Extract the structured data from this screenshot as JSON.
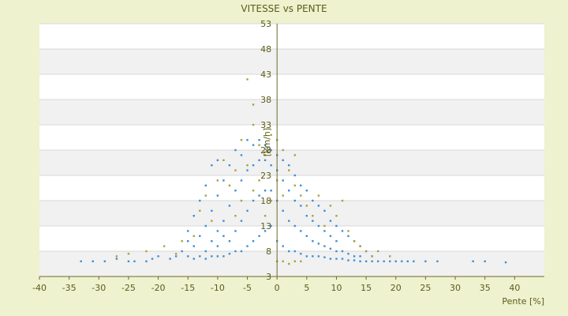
{
  "chart_data": {
    "type": "scatter",
    "title": "VITESSE vs PENTE",
    "xlabel": "Pente [%]",
    "ylabel": "[km/h]",
    "xlim": [
      -40,
      45
    ],
    "ylim": [
      3,
      53
    ],
    "x_ticks": [
      "-40",
      "-35",
      "-30",
      "-25",
      "-20",
      "-15",
      "-10",
      "-5",
      "0",
      "5",
      "10",
      "15",
      "20",
      "25",
      "30",
      "35",
      "40"
    ],
    "y_ticks": [
      "3",
      "8",
      "13",
      "18",
      "23",
      "28",
      "33",
      "38",
      "43",
      "48",
      "53"
    ],
    "grid": "horizontal alternating bands",
    "series": [
      {
        "color": "#3d8fd6",
        "points": [
          [
            -33,
            6
          ],
          [
            -31,
            6
          ],
          [
            -29,
            6
          ],
          [
            -27,
            6.5
          ],
          [
            -25,
            6
          ],
          [
            -24,
            6
          ],
          [
            -22,
            6
          ],
          [
            -21,
            6.5
          ],
          [
            -20,
            7
          ],
          [
            -18,
            6.5
          ],
          [
            -17,
            7
          ],
          [
            -16,
            8
          ],
          [
            -15,
            7
          ],
          [
            -15,
            10
          ],
          [
            -15,
            12
          ],
          [
            -14,
            6.5
          ],
          [
            -14,
            9
          ],
          [
            -14,
            15
          ],
          [
            -13,
            7
          ],
          [
            -13,
            11
          ],
          [
            -13,
            18
          ],
          [
            -12,
            6.5
          ],
          [
            -12,
            8
          ],
          [
            -12,
            13
          ],
          [
            -12,
            21
          ],
          [
            -11,
            7
          ],
          [
            -11,
            10
          ],
          [
            -11,
            16
          ],
          [
            -11,
            25
          ],
          [
            -10,
            7
          ],
          [
            -10,
            9
          ],
          [
            -10,
            12
          ],
          [
            -10,
            19
          ],
          [
            -10,
            26
          ],
          [
            -9,
            7
          ],
          [
            -9,
            11
          ],
          [
            -9,
            14
          ],
          [
            -9,
            22
          ],
          [
            -8,
            7.5
          ],
          [
            -8,
            10
          ],
          [
            -8,
            17
          ],
          [
            -8,
            25
          ],
          [
            -7,
            8
          ],
          [
            -7,
            12
          ],
          [
            -7,
            20
          ],
          [
            -7,
            28
          ],
          [
            -6,
            8
          ],
          [
            -6,
            14
          ],
          [
            -6,
            22
          ],
          [
            -6,
            27
          ],
          [
            -5,
            9
          ],
          [
            -5,
            16
          ],
          [
            -5,
            24
          ],
          [
            -5,
            30
          ],
          [
            -4,
            10
          ],
          [
            -4,
            18
          ],
          [
            -4,
            25
          ],
          [
            -4,
            29
          ],
          [
            -3,
            11
          ],
          [
            -3,
            19
          ],
          [
            -3,
            26
          ],
          [
            -3,
            30
          ],
          [
            -2,
            12
          ],
          [
            -2,
            20
          ],
          [
            -2,
            26
          ],
          [
            -2,
            29
          ],
          [
            -1,
            13
          ],
          [
            -1,
            20
          ],
          [
            -1,
            25
          ],
          [
            -1,
            28
          ],
          [
            0,
            10
          ],
          [
            0,
            18
          ],
          [
            0,
            24
          ],
          [
            0,
            27
          ],
          [
            1,
            9
          ],
          [
            1,
            16
          ],
          [
            1,
            22
          ],
          [
            1,
            26
          ],
          [
            2,
            8
          ],
          [
            2,
            14
          ],
          [
            2,
            20
          ],
          [
            2,
            25
          ],
          [
            3,
            8
          ],
          [
            3,
            13
          ],
          [
            3,
            18
          ],
          [
            3,
            23
          ],
          [
            4,
            7.5
          ],
          [
            4,
            12
          ],
          [
            4,
            17
          ],
          [
            4,
            21
          ],
          [
            5,
            7
          ],
          [
            5,
            11
          ],
          [
            5,
            15
          ],
          [
            5,
            20
          ],
          [
            6,
            7
          ],
          [
            6,
            10
          ],
          [
            6,
            14
          ],
          [
            6,
            18
          ],
          [
            7,
            7
          ],
          [
            7,
            9.5
          ],
          [
            7,
            13
          ],
          [
            7,
            17
          ],
          [
            8,
            6.8
          ],
          [
            8,
            9
          ],
          [
            8,
            12
          ],
          [
            8,
            16
          ],
          [
            9,
            6.5
          ],
          [
            9,
            8.5
          ],
          [
            9,
            11
          ],
          [
            9,
            14
          ],
          [
            10,
            6.5
          ],
          [
            10,
            8
          ],
          [
            10,
            10
          ],
          [
            10,
            13
          ],
          [
            11,
            6.5
          ],
          [
            11,
            8
          ],
          [
            11,
            12
          ],
          [
            12,
            6.2
          ],
          [
            12,
            7.5
          ],
          [
            12,
            11
          ],
          [
            13,
            6.2
          ],
          [
            13,
            7
          ],
          [
            13,
            10
          ],
          [
            14,
            6
          ],
          [
            14,
            7
          ],
          [
            14,
            9
          ],
          [
            15,
            6
          ],
          [
            15,
            8
          ],
          [
            16,
            6
          ],
          [
            16,
            7
          ],
          [
            17,
            6
          ],
          [
            18,
            6
          ],
          [
            19,
            6
          ],
          [
            20,
            6
          ],
          [
            21,
            6
          ],
          [
            22,
            6
          ],
          [
            23,
            6
          ],
          [
            25,
            6
          ],
          [
            27,
            6
          ],
          [
            33,
            6
          ],
          [
            35,
            6
          ],
          [
            38.5,
            5.8
          ]
        ]
      },
      {
        "color": "#a8a23a",
        "points": [
          [
            -27,
            7
          ],
          [
            -25,
            7.5
          ],
          [
            -22,
            8
          ],
          [
            -19,
            9
          ],
          [
            -17,
            7.5
          ],
          [
            -16,
            10
          ],
          [
            -14,
            11
          ],
          [
            -13,
            16
          ],
          [
            -12,
            19
          ],
          [
            -11,
            14
          ],
          [
            -10,
            22
          ],
          [
            -9,
            26
          ],
          [
            -8,
            21
          ],
          [
            -7,
            15
          ],
          [
            -7,
            24
          ],
          [
            -6,
            30
          ],
          [
            -6,
            18
          ],
          [
            -5,
            42
          ],
          [
            -5,
            25
          ],
          [
            -4,
            37
          ],
          [
            -4,
            33
          ],
          [
            -4,
            20
          ],
          [
            -3,
            29
          ],
          [
            -3,
            22
          ],
          [
            -2,
            27
          ],
          [
            -2,
            15
          ],
          [
            -1,
            31
          ],
          [
            -1,
            18
          ],
          [
            0,
            30
          ],
          [
            0,
            22
          ],
          [
            0,
            6
          ],
          [
            1,
            28
          ],
          [
            1,
            19
          ],
          [
            1,
            6
          ],
          [
            2,
            24
          ],
          [
            2,
            5.5
          ],
          [
            3,
            27
          ],
          [
            3,
            21
          ],
          [
            3,
            6
          ],
          [
            4,
            19
          ],
          [
            4,
            6
          ],
          [
            5,
            17
          ],
          [
            6,
            15
          ],
          [
            7,
            19
          ],
          [
            8,
            13
          ],
          [
            9,
            17
          ],
          [
            10,
            15
          ],
          [
            11,
            18
          ],
          [
            12,
            12
          ],
          [
            13,
            10
          ],
          [
            14,
            9
          ],
          [
            15,
            8
          ],
          [
            16,
            7
          ],
          [
            17,
            8
          ],
          [
            19,
            7
          ]
        ]
      }
    ]
  }
}
